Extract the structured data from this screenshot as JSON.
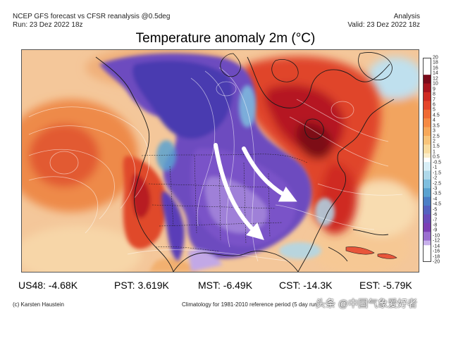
{
  "header": {
    "left_line1": "NCEP GFS forecast vs CFSR reanalysis @0.5deg",
    "left_line2": "Run: 23 Dez 2022 18z",
    "right_line1": "Analysis",
    "right_line2": "Valid: 23 Dez 2022 18z"
  },
  "title": "Temperature anomaly 2m (°C)",
  "colorbar": {
    "labels": [
      "20",
      "18",
      "16",
      "14",
      "12",
      "10",
      "9",
      "8",
      "7",
      "6",
      "5",
      "4.5",
      "4",
      "3.5",
      "3",
      "2.5",
      "2",
      "1.5",
      "1",
      "0.5",
      "-0.5",
      "-1",
      "-1.5",
      "-2",
      "-2.5",
      "-3",
      "-3.5",
      "-4",
      "-4.5",
      "-5",
      "-6",
      "-7",
      "-8",
      "-9",
      "-10",
      "-12",
      "-14",
      "-16",
      "-18",
      "-20"
    ],
    "warm_colors": [
      "#7a0a1a",
      "#a8141e",
      "#cf2a22",
      "#e4452a",
      "#ef6a34",
      "#f58a44",
      "#f7a85a",
      "#f8c47a",
      "#f9dca0",
      "#fbecc8"
    ],
    "cold_colors": [
      "#d8eef6",
      "#aed8ea",
      "#7fbfdf",
      "#5aa2d0",
      "#4c7fc6",
      "#5562c0",
      "#6a4cba",
      "#7c3fb5",
      "#9b6fd0",
      "#c7b0ea"
    ]
  },
  "stats": [
    {
      "label": "US48: -4.68K"
    },
    {
      "label": "PST: 3.619K"
    },
    {
      "label": "MST: -6.49K"
    },
    {
      "label": "CST: -14.3K"
    },
    {
      "label": "EST: -5.79K"
    }
  ],
  "footer": {
    "credit": "(c) Karsten Haustein",
    "climatology": "Climatology for 1981-2010 reference period (5 day run"
  },
  "watermark": "头条 @中国气象爱好者"
}
